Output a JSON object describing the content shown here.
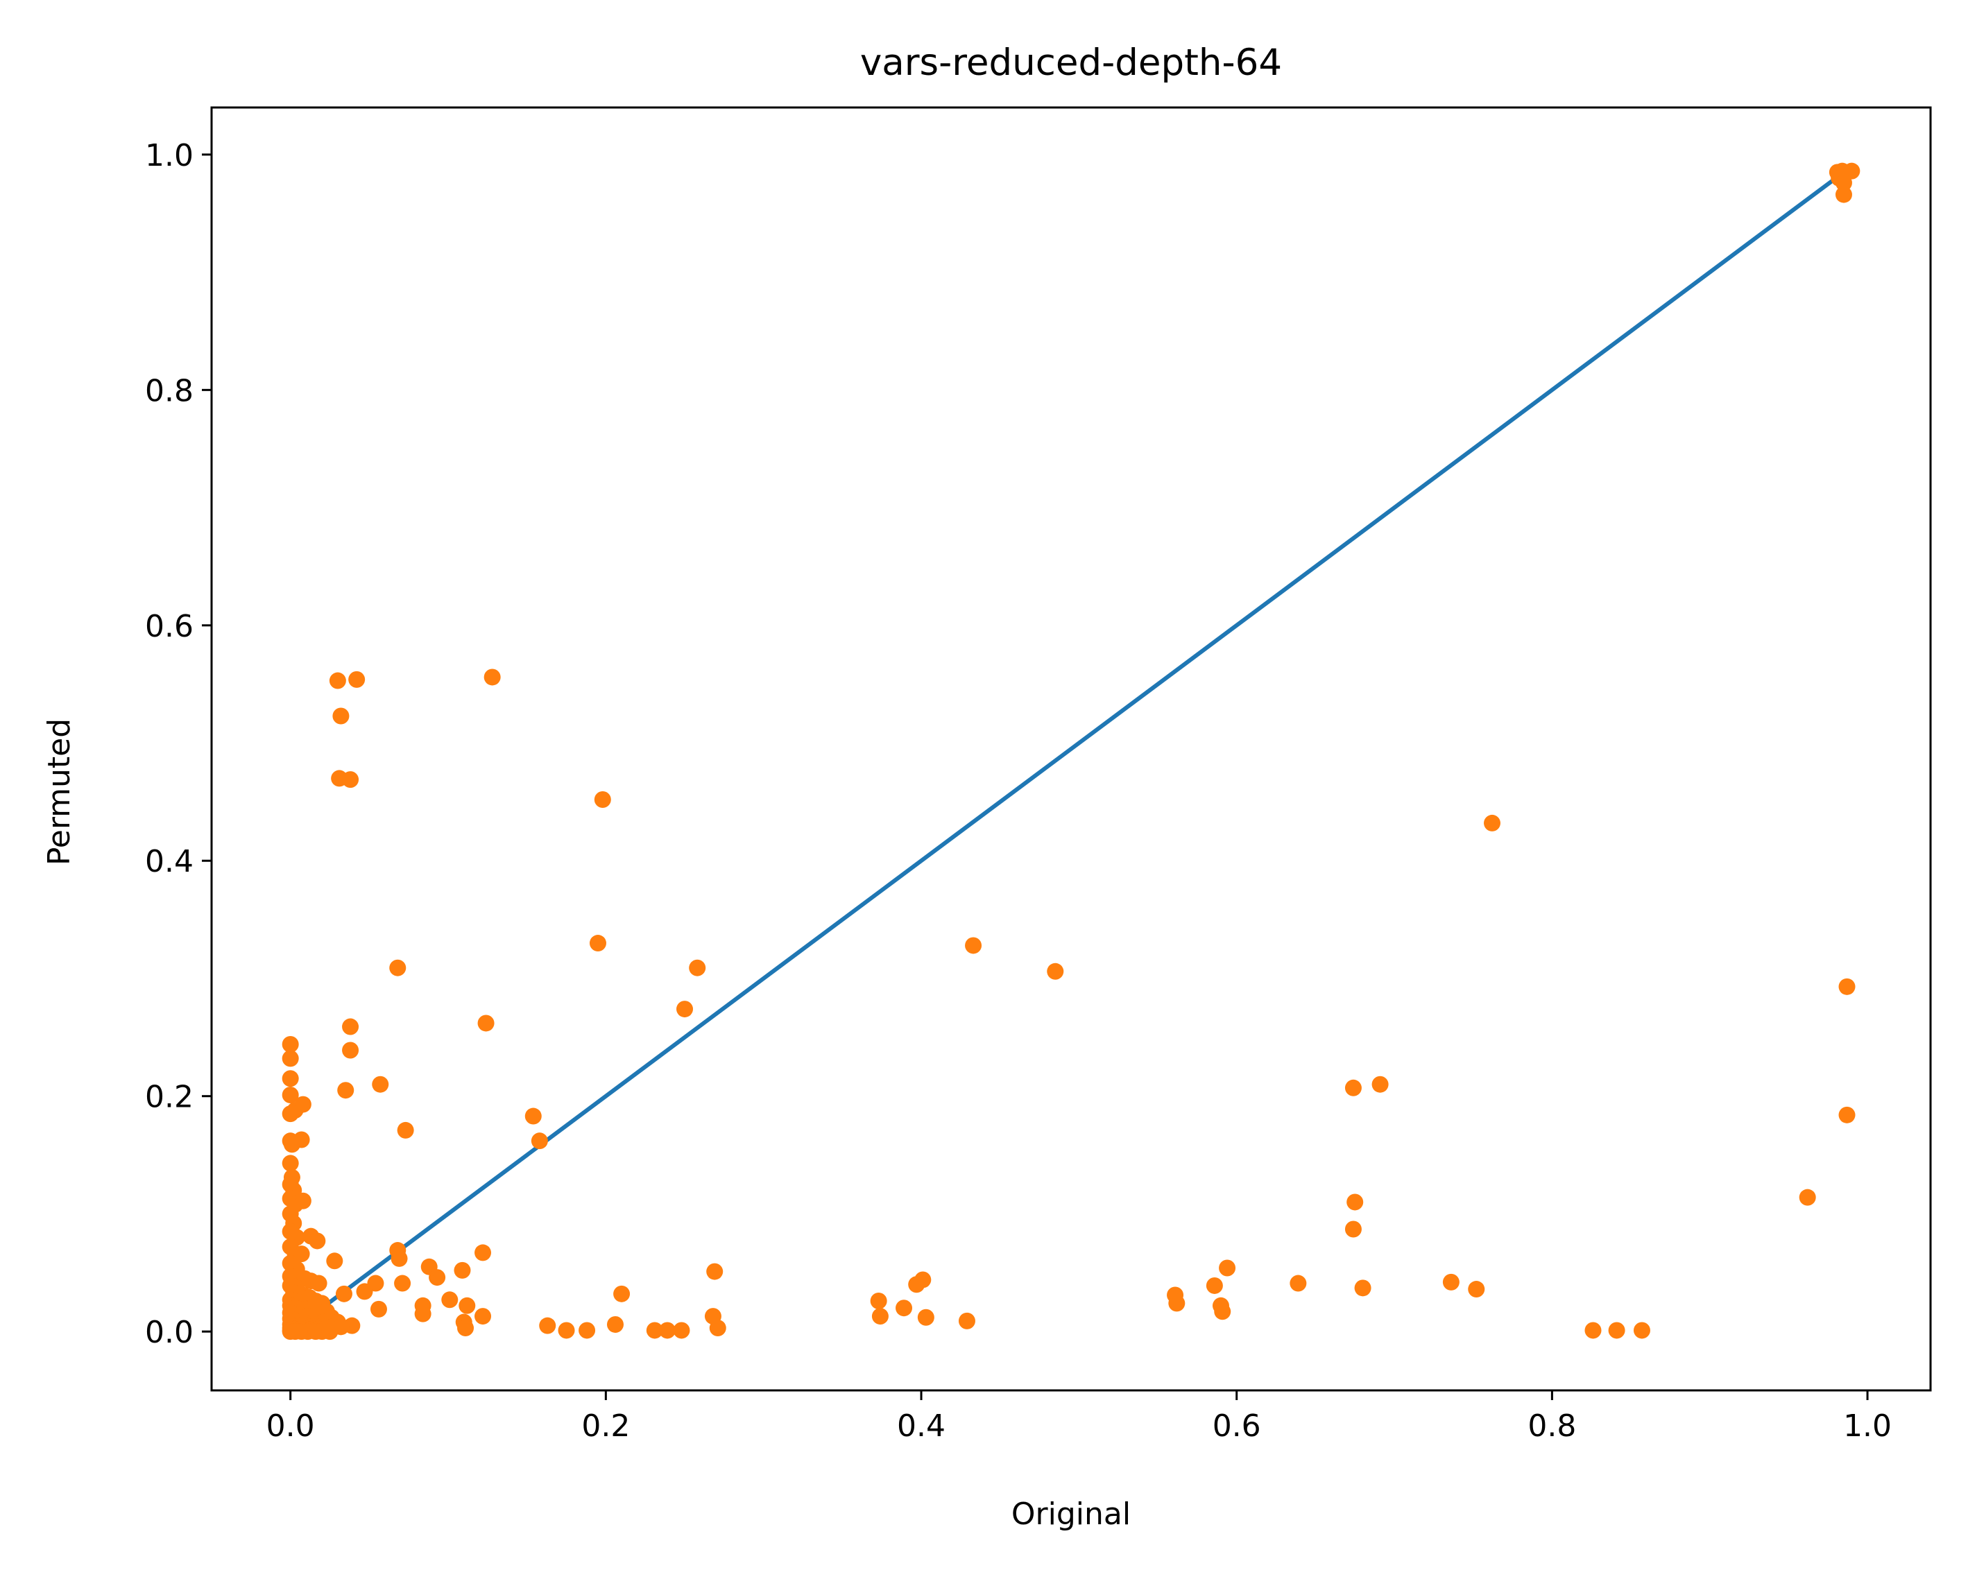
{
  "chart_data": {
    "type": "scatter",
    "title": "vars-reduced-depth-64",
    "xlabel": "Original",
    "ylabel": "Permuted",
    "xlim": [
      -0.05,
      1.04
    ],
    "ylim": [
      -0.05,
      1.04
    ],
    "xticks": [
      0.0,
      0.2,
      0.4,
      0.6,
      0.8,
      1.0
    ],
    "yticks": [
      0.0,
      0.2,
      0.4,
      0.6,
      0.8,
      1.0
    ],
    "xtick_labels": [
      "0.0",
      "0.2",
      "0.4",
      "0.6",
      "0.8",
      "1.0"
    ],
    "ytick_labels": [
      "0.0",
      "0.2",
      "0.4",
      "0.6",
      "0.8",
      "1.0"
    ],
    "grid": false,
    "colors": {
      "line": "#1f77b4",
      "points": "#ff7f0e"
    },
    "reference_line": {
      "x": [
        0.0,
        0.985
      ],
      "y": [
        0.0,
        0.985
      ]
    },
    "points": [
      [
        0.03,
        0.553
      ],
      [
        0.042,
        0.554
      ],
      [
        0.128,
        0.556
      ],
      [
        0.032,
        0.523
      ],
      [
        0.031,
        0.47
      ],
      [
        0.038,
        0.469
      ],
      [
        0.198,
        0.452
      ],
      [
        0.762,
        0.432
      ],
      [
        0.195,
        0.33
      ],
      [
        0.433,
        0.328
      ],
      [
        0.068,
        0.309
      ],
      [
        0.258,
        0.309
      ],
      [
        0.485,
        0.306
      ],
      [
        0.987,
        0.293
      ],
      [
        0.25,
        0.274
      ],
      [
        0.124,
        0.262
      ],
      [
        0.038,
        0.259
      ],
      [
        0.038,
        0.239
      ],
      [
        0.057,
        0.21
      ],
      [
        0.035,
        0.205
      ],
      [
        0.691,
        0.21
      ],
      [
        0.674,
        0.207
      ],
      [
        0.154,
        0.183
      ],
      [
        0.987,
        0.184
      ],
      [
        0.073,
        0.171
      ],
      [
        0.158,
        0.162
      ],
      [
        0.962,
        0.114
      ],
      [
        0.675,
        0.11
      ],
      [
        0.674,
        0.087
      ],
      [
        0.068,
        0.069
      ],
      [
        0.069,
        0.062
      ],
      [
        0.122,
        0.067
      ],
      [
        0.028,
        0.06
      ],
      [
        0.088,
        0.055
      ],
      [
        0.093,
        0.046
      ],
      [
        0.109,
        0.052
      ],
      [
        0.269,
        0.051
      ],
      [
        0.594,
        0.054
      ],
      [
        0.639,
        0.041
      ],
      [
        0.586,
        0.039
      ],
      [
        0.401,
        0.044
      ],
      [
        0.397,
        0.04
      ],
      [
        0.736,
        0.042
      ],
      [
        0.752,
        0.036
      ],
      [
        0.68,
        0.037
      ],
      [
        0.071,
        0.041
      ],
      [
        0.054,
        0.041
      ],
      [
        0.047,
        0.034
      ],
      [
        0.034,
        0.032
      ],
      [
        0.561,
        0.031
      ],
      [
        0.562,
        0.024
      ],
      [
        0.373,
        0.026
      ],
      [
        0.389,
        0.02
      ],
      [
        0.21,
        0.032
      ],
      [
        0.101,
        0.027
      ],
      [
        0.112,
        0.022
      ],
      [
        0.084,
        0.022
      ],
      [
        0.056,
        0.019
      ],
      [
        0.59,
        0.022
      ],
      [
        0.591,
        0.017
      ],
      [
        0.374,
        0.013
      ],
      [
        0.268,
        0.013
      ],
      [
        0.403,
        0.012
      ],
      [
        0.429,
        0.009
      ],
      [
        0.122,
        0.013
      ],
      [
        0.084,
        0.015
      ],
      [
        0.11,
        0.008
      ],
      [
        0.111,
        0.003
      ],
      [
        0.163,
        0.005
      ],
      [
        0.175,
        0.001
      ],
      [
        0.188,
        0.001
      ],
      [
        0.206,
        0.006
      ],
      [
        0.231,
        0.001
      ],
      [
        0.239,
        0.001
      ],
      [
        0.248,
        0.001
      ],
      [
        0.271,
        0.003
      ],
      [
        0.826,
        0.001
      ],
      [
        0.841,
        0.001
      ],
      [
        0.857,
        0.001
      ],
      [
        0.039,
        0.005
      ],
      [
        0.981,
        0.985
      ],
      [
        0.984,
        0.986
      ],
      [
        0.986,
        0.985
      ],
      [
        0.99,
        0.986
      ],
      [
        0.982,
        0.98
      ],
      [
        0.985,
        0.976
      ],
      [
        0.985,
        0.966
      ],
      [
        0.0,
        0.244
      ],
      [
        0.0,
        0.232
      ],
      [
        0.0,
        0.215
      ],
      [
        0.0,
        0.201
      ],
      [
        0.0,
        0.185
      ],
      [
        0.003,
        0.188
      ],
      [
        0.008,
        0.193
      ],
      [
        0.0,
        0.162
      ],
      [
        0.001,
        0.159
      ],
      [
        0.007,
        0.163
      ],
      [
        0.0,
        0.143
      ],
      [
        0.001,
        0.131
      ],
      [
        0.0,
        0.125
      ],
      [
        0.002,
        0.12
      ],
      [
        0.0,
        0.113
      ],
      [
        0.003,
        0.108
      ],
      [
        0.008,
        0.111
      ],
      [
        0.0,
        0.1
      ],
      [
        0.002,
        0.092
      ],
      [
        0.0,
        0.085
      ],
      [
        0.004,
        0.08
      ],
      [
        0.013,
        0.081
      ],
      [
        0.017,
        0.077
      ],
      [
        0.0,
        0.072
      ],
      [
        0.003,
        0.066
      ],
      [
        0.007,
        0.066
      ],
      [
        0.0,
        0.058
      ],
      [
        0.004,
        0.053
      ],
      [
        0.0,
        0.047
      ],
      [
        0.009,
        0.045
      ],
      [
        0.013,
        0.043
      ],
      [
        0.018,
        0.041
      ],
      [
        0.0,
        0.039
      ],
      [
        0.004,
        0.037
      ],
      [
        0.002,
        0.033
      ],
      [
        0.008,
        0.031
      ],
      [
        0.012,
        0.029
      ],
      [
        0.0,
        0.027
      ],
      [
        0.005,
        0.025
      ],
      [
        0.016,
        0.026
      ],
      [
        0.02,
        0.024
      ],
      [
        0.0,
        0.022
      ],
      [
        0.003,
        0.02
      ],
      [
        0.009,
        0.019
      ],
      [
        0.014,
        0.018
      ],
      [
        0.023,
        0.017
      ],
      [
        0.0,
        0.016
      ],
      [
        0.006,
        0.014
      ],
      [
        0.011,
        0.013
      ],
      [
        0.018,
        0.012
      ],
      [
        0.026,
        0.012
      ],
      [
        0.0,
        0.011
      ],
      [
        0.004,
        0.009
      ],
      [
        0.008,
        0.009
      ],
      [
        0.015,
        0.008
      ],
      [
        0.021,
        0.008
      ],
      [
        0.03,
        0.008
      ],
      [
        0.0,
        0.006
      ],
      [
        0.002,
        0.005
      ],
      [
        0.006,
        0.005
      ],
      [
        0.01,
        0.005
      ],
      [
        0.013,
        0.004
      ],
      [
        0.017,
        0.004
      ],
      [
        0.022,
        0.004
      ],
      [
        0.027,
        0.004
      ],
      [
        0.032,
        0.004
      ],
      [
        0.0,
        0.003
      ],
      [
        0.003,
        0.002
      ],
      [
        0.006,
        0.002
      ],
      [
        0.01,
        0.002
      ],
      [
        0.014,
        0.002
      ],
      [
        0.018,
        0.002
      ],
      [
        0.0,
        0.001
      ],
      [
        0.002,
        0.001
      ],
      [
        0.005,
        0.001
      ],
      [
        0.008,
        0.001
      ],
      [
        0.012,
        0.001
      ],
      [
        0.0,
        0.0
      ],
      [
        0.003,
        0.0
      ],
      [
        0.007,
        0.0
      ],
      [
        0.011,
        0.0
      ],
      [
        0.016,
        0.0
      ],
      [
        0.02,
        0.0
      ],
      [
        0.025,
        0.0
      ]
    ]
  }
}
